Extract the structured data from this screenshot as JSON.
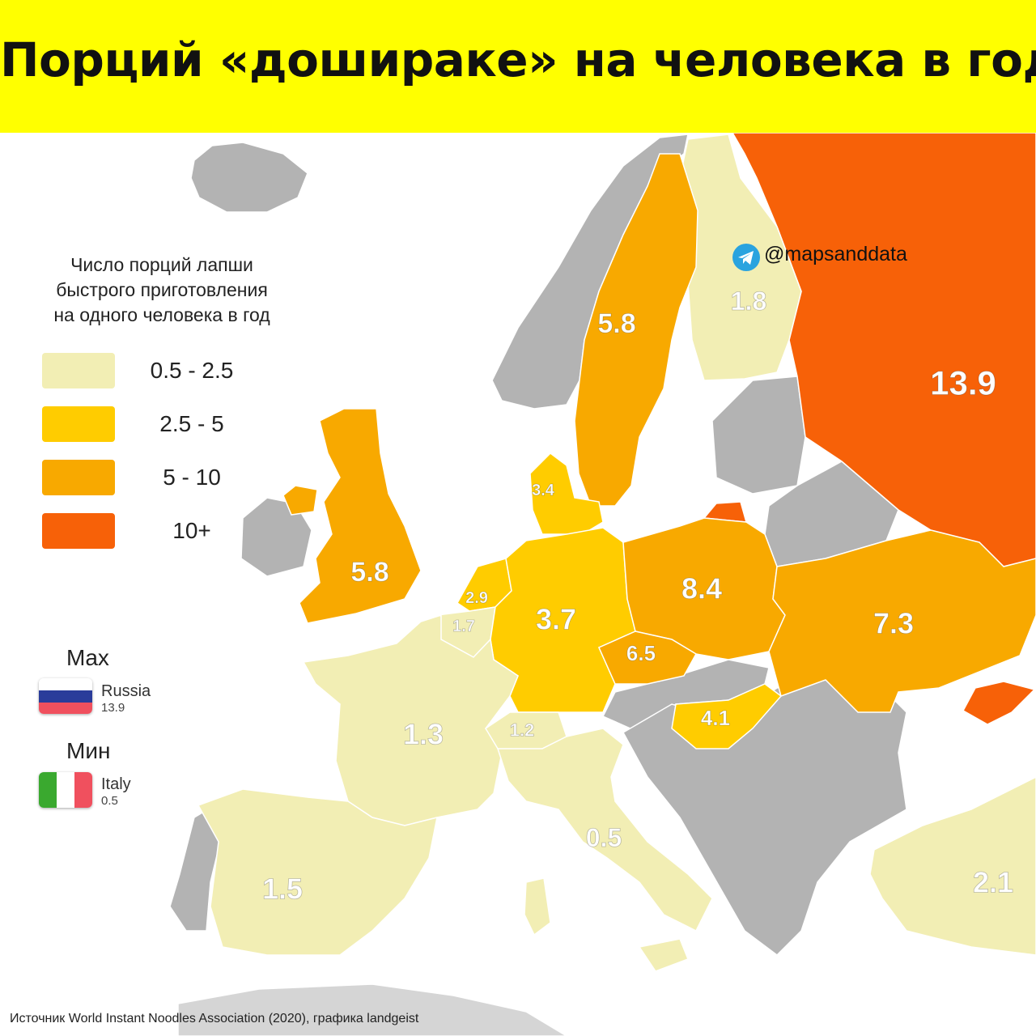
{
  "title": "Порций «дошираке» на человека в год",
  "legend": {
    "title_lines": [
      "Число порций лапши",
      "быстрого приготовления",
      "на одного человека в год"
    ],
    "classes": [
      {
        "label": "0.5 - 2.5",
        "color": "#f2eeb4"
      },
      {
        "label": "2.5 - 5",
        "color": "#ffcc00"
      },
      {
        "label": "5 - 10",
        "color": "#f8a900"
      },
      {
        "label": "10+",
        "color": "#f76108"
      }
    ]
  },
  "max": {
    "heading": "Max",
    "country": "Russia",
    "value": "13.9"
  },
  "min": {
    "heading": "Мин",
    "country": "Italy",
    "value": "0.5"
  },
  "telegram": {
    "handle": "@mapsanddata",
    "icon": "telegram-icon"
  },
  "no_data_color": "#b3b3b3",
  "countries": [
    {
      "key": "russia",
      "name": "Russia",
      "value": "13.9",
      "class": 3
    },
    {
      "key": "poland",
      "name": "Poland",
      "value": "8.4",
      "class": 2
    },
    {
      "key": "ukraine",
      "name": "Ukraine",
      "value": "7.3",
      "class": 2
    },
    {
      "key": "czechia",
      "name": "Czechia",
      "value": "6.5",
      "class": 2
    },
    {
      "key": "sweden",
      "name": "Sweden",
      "value": "5.8",
      "class": 2
    },
    {
      "key": "uk",
      "name": "United Kingdom",
      "value": "5.8",
      "class": 2
    },
    {
      "key": "hungary",
      "name": "Hungary",
      "value": "4.1",
      "class": 1
    },
    {
      "key": "germany",
      "name": "Germany",
      "value": "3.7",
      "class": 1
    },
    {
      "key": "denmark",
      "name": "Denmark",
      "value": "3.4",
      "class": 1
    },
    {
      "key": "netherlands",
      "name": "Netherlands",
      "value": "2.9",
      "class": 1
    },
    {
      "key": "turkey",
      "name": "Turkey",
      "value": "2.1",
      "class": 0
    },
    {
      "key": "finland",
      "name": "Finland",
      "value": "1.8",
      "class": 0
    },
    {
      "key": "belgium",
      "name": "Belgium",
      "value": "1.7",
      "class": 0
    },
    {
      "key": "spain",
      "name": "Spain",
      "value": "1.5",
      "class": 0
    },
    {
      "key": "france",
      "name": "France",
      "value": "1.3",
      "class": 0
    },
    {
      "key": "switzerland",
      "name": "Switzerland",
      "value": "1.2",
      "class": 0
    },
    {
      "key": "italy",
      "name": "Italy",
      "value": "0.5",
      "class": 0
    }
  ],
  "source": "Источник World Instant Noodles Association (2020), графика landgeist"
}
